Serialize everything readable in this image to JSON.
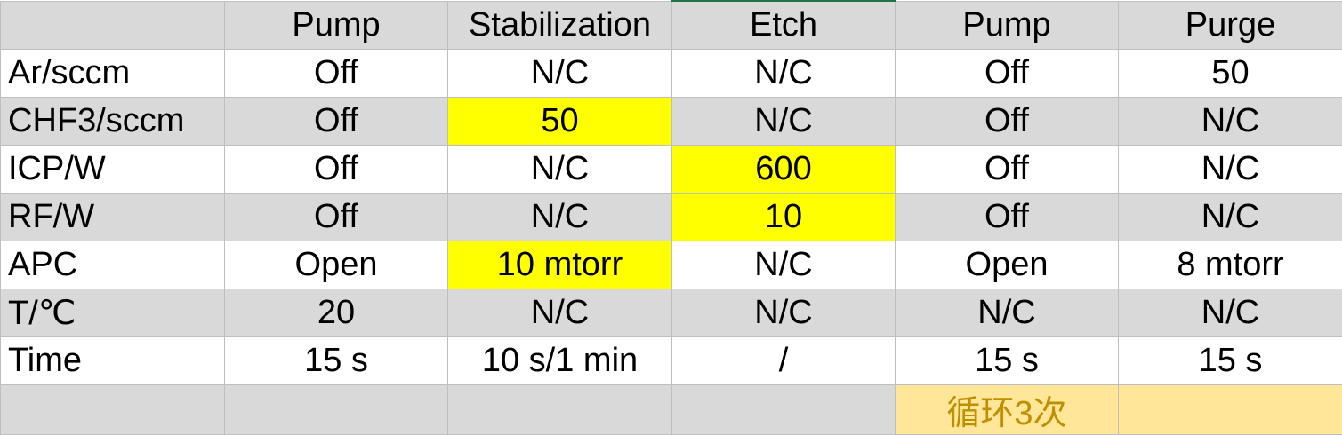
{
  "columns": [
    "",
    "Pump",
    "Stabilization",
    "Etch",
    "Pump",
    "Purge"
  ],
  "rows": [
    {
      "label": "Ar/sccm",
      "values": [
        "Off",
        "N/C",
        "N/C",
        "Off",
        "50"
      ]
    },
    {
      "label": "CHF3/sccm",
      "values": [
        "Off",
        "50",
        "N/C",
        "Off",
        "N/C"
      ]
    },
    {
      "label": "ICP/W",
      "values": [
        "Off",
        "N/C",
        "600",
        "Off",
        "N/C"
      ]
    },
    {
      "label": "RF/W",
      "values": [
        "Off",
        "N/C",
        "10",
        "Off",
        "N/C"
      ]
    },
    {
      "label": "APC",
      "values": [
        "Open",
        "10 mtorr",
        "N/C",
        "Open",
        "8 mtorr"
      ]
    },
    {
      "label": "T/℃",
      "values": [
        "20",
        "N/C",
        "N/C",
        "N/C",
        "N/C"
      ]
    },
    {
      "label": "Time",
      "values": [
        "15 s",
        "10 s/1 min",
        "/",
        "15 s",
        "15 s"
      ]
    }
  ],
  "footer": {
    "loop_note": "循环3次"
  },
  "colors": {
    "header_fill": "#d9d9d9",
    "highlight_yellow": "#ffff00",
    "loop_fill": "#ffe699",
    "loop_text": "#bf8f00",
    "gridline": "#bfbfbf"
  }
}
